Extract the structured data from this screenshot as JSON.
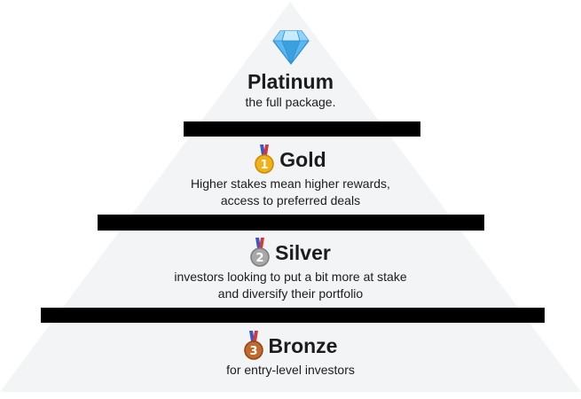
{
  "diagram": {
    "type": "pyramid",
    "colors": {
      "pyramid_fill": "#f3f4f6",
      "band": "#000000",
      "text": "#1c1c1c",
      "gold": "#f2b11a",
      "silver": "#a8a8a8",
      "bronze": "#c26a2b",
      "ribbon_blue": "#3a56c8",
      "ribbon_red": "#d23a3a",
      "gem": "#5ab8f0"
    },
    "tiers": [
      {
        "key": "platinum",
        "icon": "diamond-icon",
        "name": "Platinum",
        "description": [
          "the full package."
        ]
      },
      {
        "key": "gold",
        "icon": "gold-medal-icon",
        "medal_number": "1",
        "name": "Gold",
        "description": [
          "Higher stakes mean higher rewards,",
          "access to preferred deals"
        ]
      },
      {
        "key": "silver",
        "icon": "silver-medal-icon",
        "medal_number": "2",
        "name": "Silver",
        "description": [
          "investors looking to put a bit more at stake",
          "and diversify their portfolio"
        ]
      },
      {
        "key": "bronze",
        "icon": "bronze-medal-icon",
        "medal_number": "3",
        "name": "Bronze",
        "description": [
          "for entry-level investors"
        ]
      }
    ]
  }
}
